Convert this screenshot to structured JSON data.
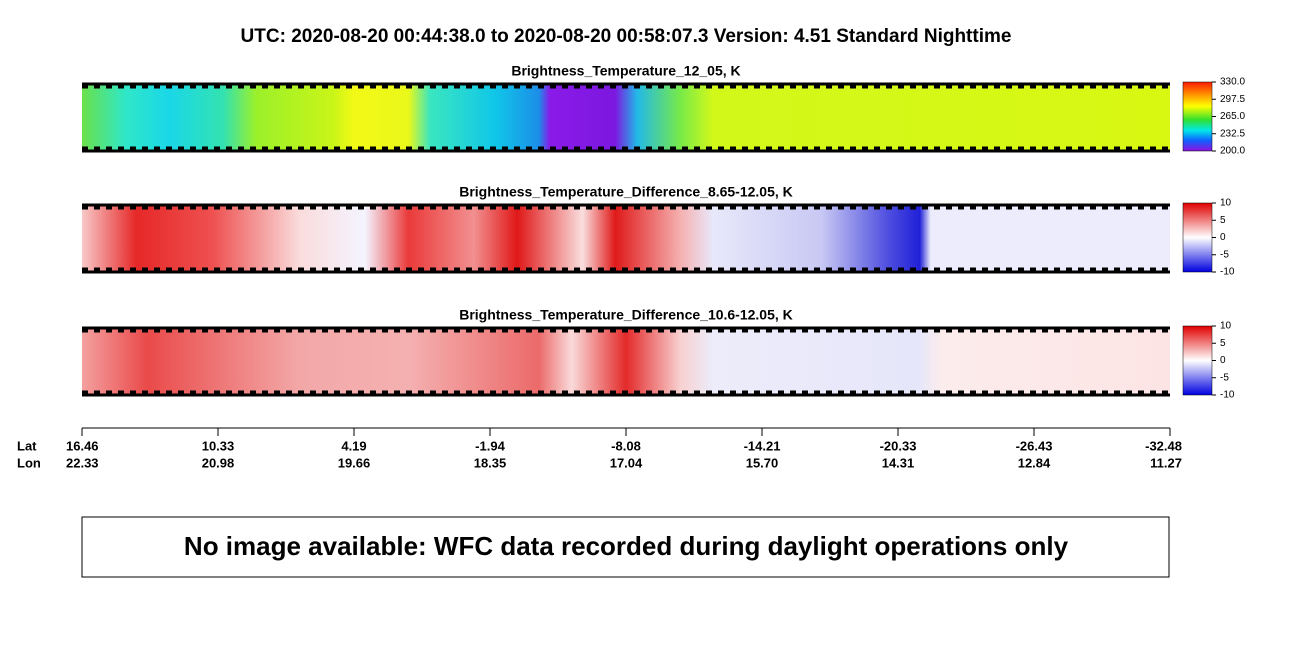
{
  "title": "UTC:  2020-08-20   00:44:38.0  to  2020-08-20   00:58:07.3    Version: 4.51  Standard Nighttime",
  "panels": [
    {
      "title": "Brightness_Temperature_12_05, K",
      "colorbar_labels": [
        "330.0",
        "297.5",
        "265.0",
        "232.5",
        "200.0"
      ]
    },
    {
      "title": "Brightness_Temperature_Difference_8.65-12.05, K",
      "colorbar_labels": [
        "10",
        "5",
        "0",
        "-5",
        "-10"
      ]
    },
    {
      "title": "Brightness_Temperature_Difference_10.6-12.05, K",
      "colorbar_labels": [
        "10",
        "5",
        "0",
        "-5",
        "-10"
      ]
    }
  ],
  "axis": {
    "lat_label": "Lat",
    "lon_label": "Lon",
    "lat": [
      "16.46",
      "10.33",
      "4.19",
      "-1.94",
      "-8.08",
      "-14.21",
      "-20.33",
      "-26.43",
      "-32.48"
    ],
    "lon": [
      "22.33",
      "20.98",
      "19.66",
      "18.35",
      "17.04",
      "15.70",
      "14.31",
      "12.84",
      "11.27"
    ]
  },
  "notice": "No image available: WFC data recorded during daylight operations only"
}
